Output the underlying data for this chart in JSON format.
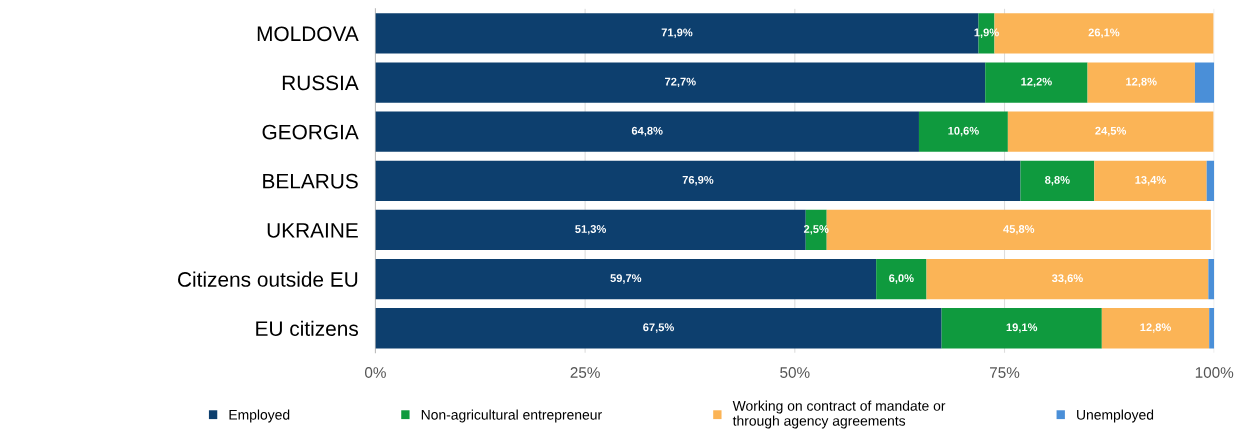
{
  "chart_data": {
    "type": "bar",
    "orientation": "horizontal",
    "stacked": true,
    "categories": [
      "MOLDOVA",
      "RUSSIA",
      "GEORGIA",
      "BELARUS",
      "UKRAINE",
      "Citizens outside EU",
      "EU citizens"
    ],
    "series": [
      {
        "name": "Employed",
        "color": "#0d3f6e",
        "values": [
          71.9,
          72.7,
          64.8,
          76.9,
          51.3,
          59.7,
          67.5
        ],
        "value_labels": [
          "71,9%",
          "72,7%",
          "64,8%",
          "76,9%",
          "51,3%",
          "59,7%",
          "67,5%"
        ]
      },
      {
        "name": "Non-agricultural entrepreneur",
        "color": "#0f9a3e",
        "values": [
          1.9,
          12.2,
          10.6,
          8.8,
          2.5,
          6.0,
          19.1
        ],
        "value_labels": [
          "1,9%",
          "12,2%",
          "10,6%",
          "8,8%",
          "2,5%",
          "6,0%",
          "19,1%"
        ]
      },
      {
        "name": "Working on contract of mandate or\nthrough agency agreements",
        "color": "#fbb456",
        "values": [
          26.1,
          12.8,
          24.5,
          13.4,
          45.8,
          33.6,
          12.8
        ],
        "value_labels": [
          "26,1%",
          "12,8%",
          "24,5%",
          "13,4%",
          "45,8%",
          "33,6%",
          "12,8%"
        ]
      },
      {
        "name": "Unemployed",
        "color": "#4a8fd8",
        "values": [
          null,
          2.3,
          null,
          0.9,
          null,
          0.7,
          0.6
        ]
      }
    ],
    "xlim": [
      0,
      100
    ],
    "xticks": [
      {
        "value": 0,
        "label": "0%"
      },
      {
        "value": 25,
        "label": "25%"
      },
      {
        "value": 50,
        "label": "50%"
      },
      {
        "value": 75,
        "label": "75%"
      },
      {
        "value": 100,
        "label": "100%"
      }
    ],
    "grid": "x",
    "legend": "bottom"
  }
}
